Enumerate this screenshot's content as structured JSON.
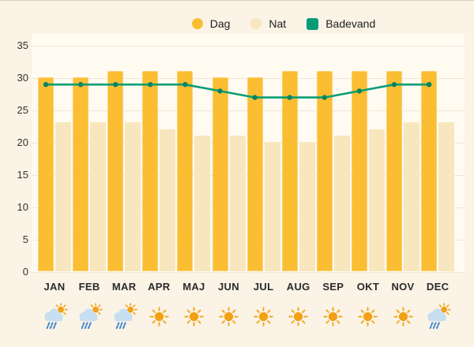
{
  "page": {
    "background": "#FAF3E6",
    "plot_background": "#FFFBF1",
    "grid_color": "#EFE7D8",
    "text_color": "#2B2B2B"
  },
  "legend": {
    "items": [
      {
        "label": "Dag",
        "shape": "circle",
        "color": "#FBBE33"
      },
      {
        "label": "Nat",
        "shape": "circle",
        "color": "#F8E6BE"
      },
      {
        "label": "Badevand",
        "shape": "square",
        "color": "#089C76"
      }
    ]
  },
  "chart_data": {
    "type": "bar",
    "subtype": "grouped-bars-with-line",
    "title": "",
    "xlabel": "",
    "ylabel": "",
    "categories": [
      "JAN",
      "FEB",
      "MAR",
      "APR",
      "MAJ",
      "JUN",
      "JUL",
      "AUG",
      "SEP",
      "OKT",
      "NOV",
      "DEC"
    ],
    "series": [
      {
        "name": "Dag",
        "type": "bar",
        "color": "#FBBE33",
        "values": [
          30,
          30,
          31,
          31,
          31,
          30,
          30,
          31,
          31,
          31,
          31,
          31
        ]
      },
      {
        "name": "Nat",
        "type": "bar",
        "color": "#F8E6BE",
        "values": [
          23,
          23,
          23,
          22,
          21,
          21,
          20,
          20,
          21,
          22,
          23,
          23
        ]
      },
      {
        "name": "Badevand",
        "type": "line",
        "color": "#089C76",
        "marker_color": "#04845F",
        "values": [
          29,
          29,
          29,
          29,
          29,
          28,
          27,
          27,
          27,
          28,
          29,
          29
        ]
      }
    ],
    "ylim": [
      0,
      35
    ],
    "yticks": [
      0,
      5,
      10,
      15,
      20,
      25,
      30,
      35
    ],
    "grid": true,
    "legend_position": "top",
    "weather_icons": [
      "rain-sun",
      "rain-sun",
      "rain-sun",
      "sun",
      "sun",
      "sun",
      "sun",
      "sun",
      "sun",
      "sun",
      "sun",
      "rain-sun"
    ]
  }
}
